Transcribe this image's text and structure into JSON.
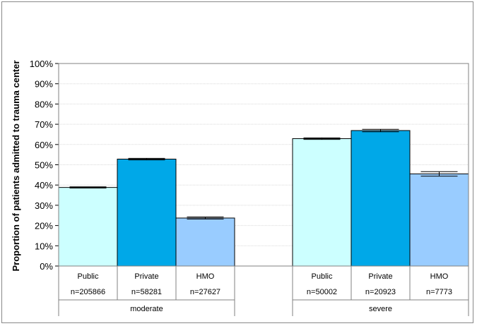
{
  "chart_data": {
    "type": "bar",
    "ylabel": "Proportion of patients admitted to trauma center",
    "ylim": [
      0,
      100
    ],
    "yticks": [
      "0%",
      "10%",
      "20%",
      "30%",
      "40%",
      "50%",
      "60%",
      "70%",
      "80%",
      "90%",
      "100%"
    ],
    "grid": true,
    "groups": [
      {
        "label": "moderate",
        "bars": [
          {
            "label": "Public",
            "n": "n=205866",
            "value": 38.8,
            "err": 0.3,
            "color": "#ccffff"
          },
          {
            "label": "Private",
            "n": "n=58281",
            "value": 52.8,
            "err": 0.4,
            "color": "#00a8e8"
          },
          {
            "label": "HMO",
            "n": "n=27627",
            "value": 23.7,
            "err": 0.5,
            "color": "#99ccff"
          }
        ]
      },
      {
        "label": "severe",
        "bars": [
          {
            "label": "Public",
            "n": "n=50002",
            "value": 62.9,
            "err": 0.4,
            "color": "#ccffff"
          },
          {
            "label": "Private",
            "n": "n=20923",
            "value": 66.9,
            "err": 0.6,
            "color": "#00a8e8"
          },
          {
            "label": "HMO",
            "n": "n=7773",
            "value": 45.5,
            "err": 1.1,
            "color": "#99ccff"
          }
        ]
      }
    ]
  }
}
